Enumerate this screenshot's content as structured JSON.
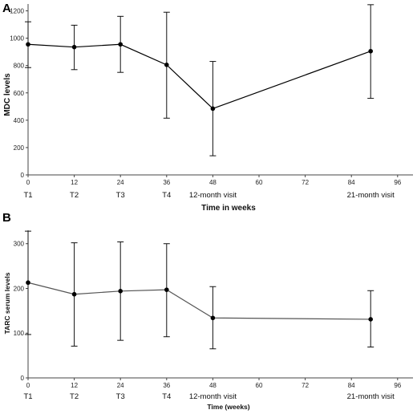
{
  "chart_data": [
    {
      "panel": "A",
      "type": "line",
      "xlabel": "Time in weeks",
      "ylabel": "MDC levels",
      "xlim": [
        0,
        100
      ],
      "ylim": [
        0,
        1250
      ],
      "xticks": [
        0,
        12,
        24,
        36,
        48,
        60,
        72,
        84,
        96
      ],
      "yticks": [
        0,
        200,
        400,
        600,
        800,
        1000,
        1200
      ],
      "timepoint_labels": [
        {
          "x": 0,
          "label": "T1"
        },
        {
          "x": 12,
          "label": "T2"
        },
        {
          "x": 24,
          "label": "T3"
        },
        {
          "x": 36,
          "label": "T4"
        },
        {
          "x": 48,
          "label": "12-month visit"
        },
        {
          "x": 89,
          "label": "21-month visit"
        }
      ],
      "series": [
        {
          "x": [
            0,
            12,
            24,
            36,
            48,
            89
          ],
          "values": [
            955,
            935,
            955,
            805,
            485,
            905
          ],
          "error_low": [
            785,
            770,
            750,
            415,
            140,
            560
          ],
          "error_high": [
            1120,
            1095,
            1160,
            1190,
            830,
            1245
          ]
        }
      ],
      "line_color": "#000000"
    },
    {
      "panel": "B",
      "type": "line",
      "xlabel": "Time (weeks)",
      "ylabel": "TARC serum levels",
      "xlim": [
        0,
        100
      ],
      "ylim": [
        0,
        330
      ],
      "xticks": [
        0,
        12,
        24,
        36,
        48,
        60,
        72,
        84,
        96
      ],
      "yticks": [
        0,
        100,
        200,
        300
      ],
      "timepoint_labels": [
        {
          "x": 0,
          "label": "T1"
        },
        {
          "x": 12,
          "label": "T2"
        },
        {
          "x": 24,
          "label": "T3"
        },
        {
          "x": 36,
          "label": "T4"
        },
        {
          "x": 48,
          "label": "12-month visit"
        },
        {
          "x": 89,
          "label": "21-month visit"
        }
      ],
      "series": [
        {
          "x": [
            0,
            12,
            24,
            36,
            48,
            89
          ],
          "values": [
            213,
            187,
            194,
            197,
            134,
            131
          ],
          "error_low": [
            97,
            71,
            84,
            92,
            65,
            69
          ],
          "error_high": [
            328,
            302,
            304,
            300,
            204,
            195
          ]
        }
      ],
      "line_color": "#555555"
    }
  ]
}
